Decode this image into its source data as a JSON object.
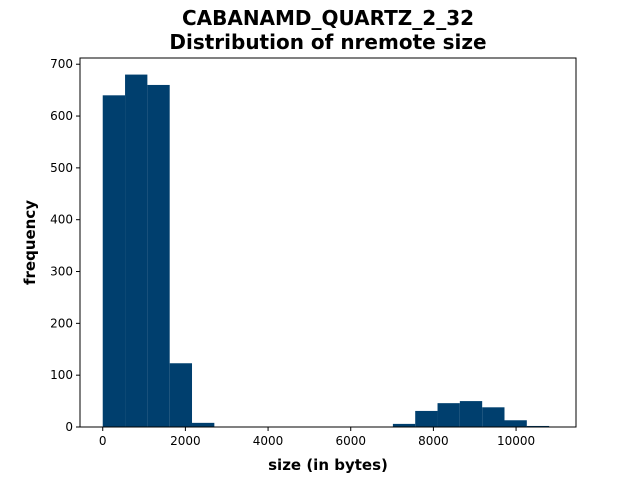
{
  "chart_data": {
    "type": "histogram",
    "title": "CABANAMD_QUARTZ_2_32",
    "subtitle": "Distribution of nremote size",
    "xlabel": "size (in bytes)",
    "ylabel": "frequency",
    "xlim": [
      -550,
      11450
    ],
    "ylim": [
      0,
      712
    ],
    "xticks": [
      0,
      2000,
      4000,
      6000,
      8000,
      10000
    ],
    "yticks": [
      0,
      100,
      200,
      300,
      400,
      500,
      600,
      700
    ],
    "bar_color": "#003f6e",
    "bins": [
      {
        "start": 0,
        "end": 540,
        "count": 640
      },
      {
        "start": 540,
        "end": 1080,
        "count": 680
      },
      {
        "start": 1080,
        "end": 1620,
        "count": 660
      },
      {
        "start": 1620,
        "end": 2160,
        "count": 123
      },
      {
        "start": 2160,
        "end": 2700,
        "count": 8
      },
      {
        "start": 2700,
        "end": 3240,
        "count": 0
      },
      {
        "start": 3240,
        "end": 3780,
        "count": 0
      },
      {
        "start": 3780,
        "end": 4320,
        "count": 0
      },
      {
        "start": 4320,
        "end": 4860,
        "count": 0
      },
      {
        "start": 4860,
        "end": 5400,
        "count": 0
      },
      {
        "start": 5400,
        "end": 5940,
        "count": 0
      },
      {
        "start": 5940,
        "end": 6480,
        "count": 0
      },
      {
        "start": 6480,
        "end": 7020,
        "count": 0
      },
      {
        "start": 7020,
        "end": 7560,
        "count": 6
      },
      {
        "start": 7560,
        "end": 8100,
        "count": 31
      },
      {
        "start": 8100,
        "end": 8640,
        "count": 46
      },
      {
        "start": 8640,
        "end": 9180,
        "count": 50
      },
      {
        "start": 9180,
        "end": 9720,
        "count": 38
      },
      {
        "start": 9720,
        "end": 10260,
        "count": 13
      },
      {
        "start": 10260,
        "end": 10800,
        "count": 2
      }
    ]
  }
}
